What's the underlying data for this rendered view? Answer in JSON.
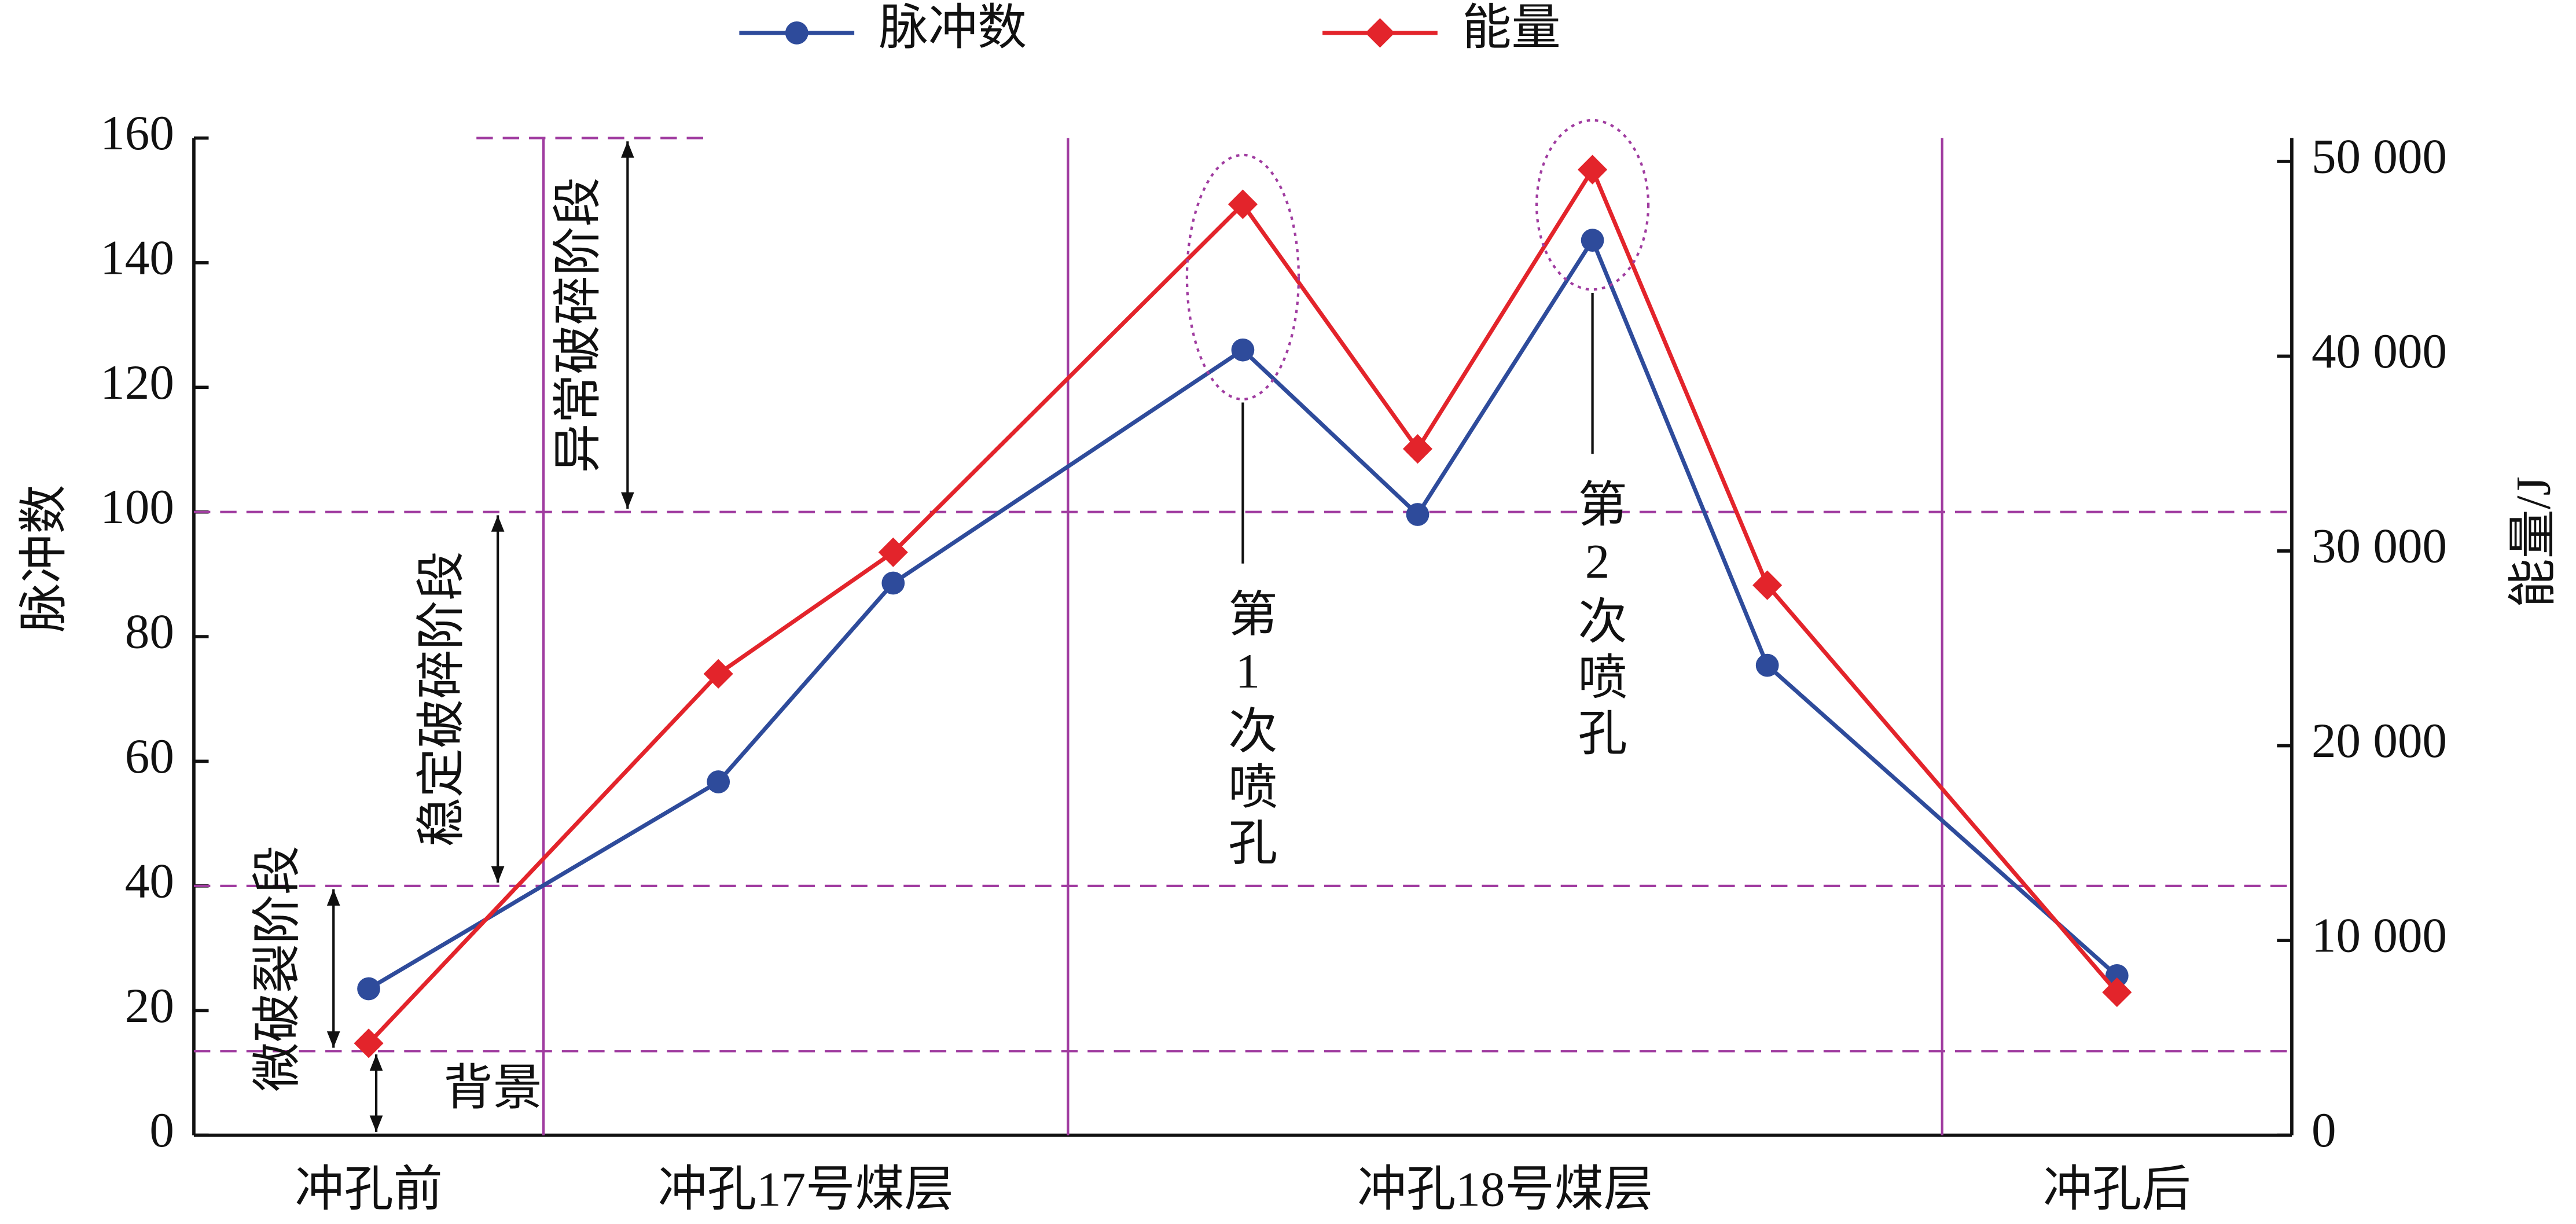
{
  "chart_data": {
    "type": "line",
    "categories": [
      "冲孔前",
      "冲孔17号煤层",
      null,
      "冲孔18号煤层",
      null,
      null,
      null,
      "冲孔后"
    ],
    "series": [
      {
        "name": "脉冲数",
        "color": "#2e4b9b",
        "marker": "circle",
        "values": [
          23.5,
          56.7,
          88.6,
          126,
          99.6,
          143.6,
          75.4,
          25.6
        ]
      },
      {
        "name": "能量",
        "color": "#e3242b",
        "marker": "diamond",
        "axis": "y2",
        "values": [
          4720,
          23690,
          29930,
          47800,
          35240,
          49580,
          28240,
          7340
        ]
      }
    ],
    "y_label": "脉冲数",
    "y2_label": "能量/J",
    "ylim": [
      0,
      160
    ],
    "yticks": [
      0,
      20,
      40,
      60,
      80,
      100,
      120,
      140,
      160
    ],
    "y2lim": [
      0,
      51200
    ],
    "y2ticks": [
      0,
      {
        "value": 10000,
        "label": "10 000"
      },
      {
        "value": 20000,
        "label": "20 000"
      },
      {
        "value": 30000,
        "label": "30 000"
      },
      {
        "value": 40000,
        "label": "40 000"
      },
      {
        "value": 50000,
        "label": "50 000"
      }
    ],
    "stages": [
      {
        "label": "背景",
        "from": 0,
        "to": 13.5
      },
      {
        "label": "微破裂阶段",
        "from": 13.5,
        "to": 40
      },
      {
        "label": "稳定破碎阶段",
        "from": 40,
        "to": 100
      },
      {
        "label": "异常破碎阶段",
        "from": 100,
        "to": 160
      }
    ],
    "point_annotations": [
      null,
      null,
      null,
      "第1次喷孔",
      null,
      "第2次喷孔",
      null,
      null
    ]
  }
}
